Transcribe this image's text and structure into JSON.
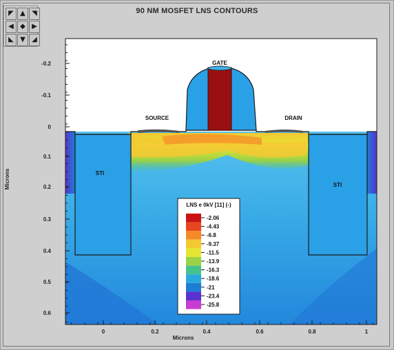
{
  "window": {
    "title": "90 NM MOSFET LNS CONTOURS"
  },
  "nav_buttons": [
    {
      "name": "nav-up-left-icon",
      "glyph": "◤"
    },
    {
      "name": "nav-up-icon",
      "glyph": "▲"
    },
    {
      "name": "nav-up-right-icon",
      "glyph": "◥"
    },
    {
      "name": "nav-left-icon",
      "glyph": "◀"
    },
    {
      "name": "nav-center-icon",
      "glyph": "◆"
    },
    {
      "name": "nav-right-icon",
      "glyph": "▶"
    },
    {
      "name": "nav-down-left-icon",
      "glyph": "◣"
    },
    {
      "name": "nav-down-icon",
      "glyph": "▼"
    },
    {
      "name": "nav-down-right-icon",
      "glyph": "◢"
    }
  ],
  "plot": {
    "x_axis_label": "Microns",
    "y_axis_label": "Microns",
    "x_ticks": [
      "0",
      "0.2",
      "0.4",
      "0.6",
      "0.8",
      "1"
    ],
    "y_ticks": [
      "-0.2",
      "-0.1",
      "0",
      "0.1",
      "0.2",
      "0.3",
      "0.4",
      "0.5",
      "0.6"
    ],
    "region_labels": {
      "gate": "GATE",
      "source": "SOURCE",
      "drain": "DRAIN",
      "sti_left": "STI",
      "sti_right": "STI"
    }
  },
  "legend": {
    "title": "LNS e 0kV [11] (-)",
    "entries": [
      {
        "label": "-2.06",
        "color": "#c81414"
      },
      {
        "label": "-4.43",
        "color": "#e8461e"
      },
      {
        "label": "-6.8",
        "color": "#f58a28"
      },
      {
        "label": "-9.37",
        "color": "#f5c832"
      },
      {
        "label": "-11.5",
        "color": "#e6e632"
      },
      {
        "label": "-13.9",
        "color": "#9ad246"
      },
      {
        "label": "-16.3",
        "color": "#46c38c"
      },
      {
        "label": "-18.6",
        "color": "#28aade"
      },
      {
        "label": "-21",
        "color": "#1e7dd2"
      },
      {
        "label": "-23.4",
        "color": "#5a32d2"
      },
      {
        "label": "-25.8",
        "color": "#c83cd2"
      }
    ]
  },
  "colors": {
    "gate": "#9a1010",
    "sti": "#2aa0e6",
    "bulk_light": "#3fb0ea",
    "bulk_deep": "#2a8ce0"
  }
}
